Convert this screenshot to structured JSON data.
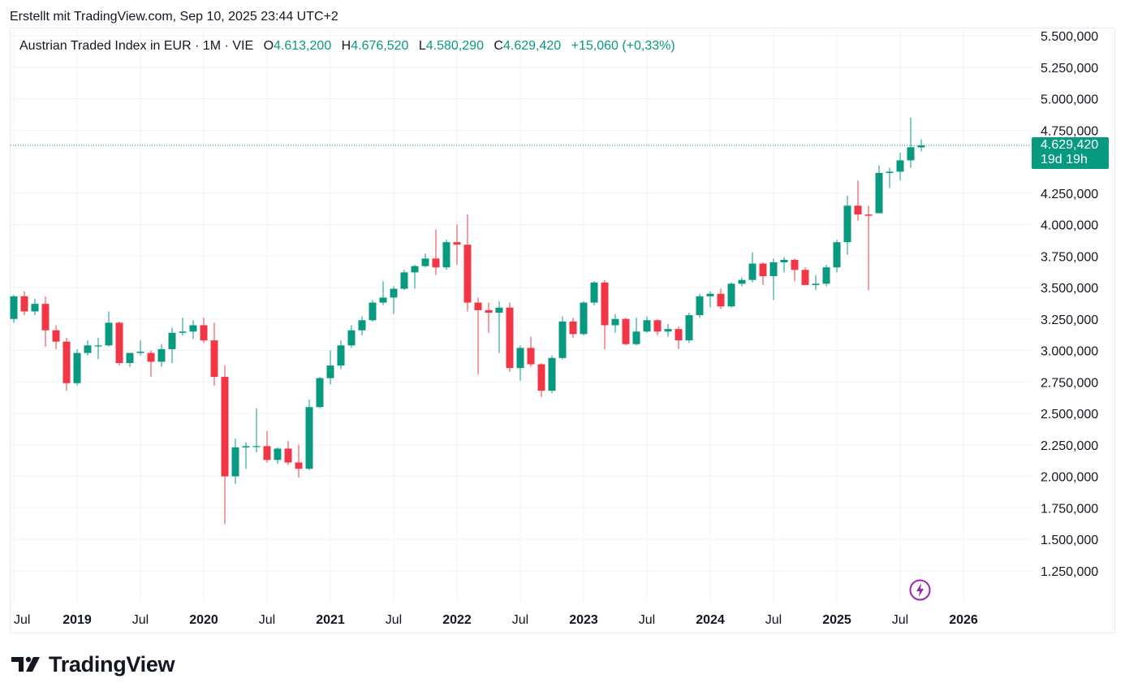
{
  "header": {
    "credit": "Erstellt mit TradingView.com, Sep 10, 2025 23:44 UTC+2"
  },
  "legend": {
    "symbol": "Austrian Traded Index in EUR · 1M · VIE",
    "o_label": "O",
    "o_value": "4.613,200",
    "h_label": "H",
    "h_value": "4.676,520",
    "l_label": "L",
    "l_value": "4.580,290",
    "c_label": "C",
    "c_value": "4.629,420",
    "change": "+15,060 (+0,33%)"
  },
  "price_tag": {
    "price": "4.629,420",
    "countdown": "19d 19h"
  },
  "brand": {
    "name": "TradingView"
  },
  "icons": {
    "bolt": "lightning-bolt-icon",
    "logo": "tradingview-logo-icon"
  },
  "colors": {
    "up": "#089981",
    "down": "#f23645",
    "grid": "#f0f3fa",
    "axis_text": "#131722",
    "bolt": "#9c27b0"
  },
  "chart_data": {
    "type": "candlestick",
    "interval": "1M",
    "y_ticks": [
      {
        "value": 5500000,
        "label": "5.500,000"
      },
      {
        "value": 5250000,
        "label": "5.250,000"
      },
      {
        "value": 5000000,
        "label": "5.000,000"
      },
      {
        "value": 4750000,
        "label": "4.750,000"
      },
      {
        "value": 4250000,
        "label": "4.250,000"
      },
      {
        "value": 4000000,
        "label": "4.000,000"
      },
      {
        "value": 3750000,
        "label": "3.750,000"
      },
      {
        "value": 3500000,
        "label": "3.500,000"
      },
      {
        "value": 3250000,
        "label": "3.250,000"
      },
      {
        "value": 3000000,
        "label": "3.000,000"
      },
      {
        "value": 2750000,
        "label": "2.750,000"
      },
      {
        "value": 2500000,
        "label": "2.500,000"
      },
      {
        "value": 2250000,
        "label": "2.250,000"
      },
      {
        "value": 2000000,
        "label": "2.000,000"
      },
      {
        "value": 1750000,
        "label": "1.750,000"
      },
      {
        "value": 1500000,
        "label": "1.500,000"
      },
      {
        "value": 1250000,
        "label": "1.250,000"
      }
    ],
    "y_range": [
      1000000,
      5600000
    ],
    "x_ticks": [
      {
        "index": 0,
        "label": "Jul",
        "bold": false
      },
      {
        "index": 6,
        "label": "2019",
        "bold": true
      },
      {
        "index": 12,
        "label": "Jul",
        "bold": false
      },
      {
        "index": 18,
        "label": "2020",
        "bold": true
      },
      {
        "index": 24,
        "label": "Jul",
        "bold": false
      },
      {
        "index": 30,
        "label": "2021",
        "bold": true
      },
      {
        "index": 36,
        "label": "Jul",
        "bold": false
      },
      {
        "index": 42,
        "label": "2022",
        "bold": true
      },
      {
        "index": 48,
        "label": "Jul",
        "bold": false
      },
      {
        "index": 54,
        "label": "2023",
        "bold": true
      },
      {
        "index": 60,
        "label": "Jul",
        "bold": false
      },
      {
        "index": 66,
        "label": "2024",
        "bold": true
      },
      {
        "index": 72,
        "label": "Jul",
        "bold": false
      },
      {
        "index": 78,
        "label": "2025",
        "bold": true
      },
      {
        "index": 84,
        "label": "Jul",
        "bold": false
      },
      {
        "index": 90,
        "label": "2026",
        "bold": true
      }
    ],
    "last_price": 4629420,
    "candles": [
      {
        "date": "2018-07",
        "o": 3250000,
        "h": 3440000,
        "l": 3220000,
        "c": 3430000
      },
      {
        "date": "2018-08",
        "o": 3430000,
        "h": 3470000,
        "l": 3280000,
        "c": 3310000
      },
      {
        "date": "2018-09",
        "o": 3310000,
        "h": 3410000,
        "l": 3280000,
        "c": 3370000
      },
      {
        "date": "2018-10",
        "o": 3370000,
        "h": 3430000,
        "l": 3030000,
        "c": 3160000
      },
      {
        "date": "2018-11",
        "o": 3160000,
        "h": 3200000,
        "l": 3010000,
        "c": 3070000
      },
      {
        "date": "2018-12",
        "o": 3070000,
        "h": 3100000,
        "l": 2680000,
        "c": 2740000
      },
      {
        "date": "2019-01",
        "o": 2740000,
        "h": 3010000,
        "l": 2720000,
        "c": 2980000
      },
      {
        "date": "2019-02",
        "o": 2980000,
        "h": 3080000,
        "l": 2960000,
        "c": 3040000
      },
      {
        "date": "2019-03",
        "o": 3040000,
        "h": 3100000,
        "l": 2930000,
        "c": 3040000
      },
      {
        "date": "2019-04",
        "o": 3040000,
        "h": 3310000,
        "l": 3030000,
        "c": 3220000
      },
      {
        "date": "2019-05",
        "o": 3220000,
        "h": 3230000,
        "l": 2880000,
        "c": 2900000
      },
      {
        "date": "2019-06",
        "o": 2900000,
        "h": 2980000,
        "l": 2870000,
        "c": 2980000
      },
      {
        "date": "2019-07",
        "o": 2980000,
        "h": 3080000,
        "l": 2960000,
        "c": 2990000
      },
      {
        "date": "2019-08",
        "o": 2980000,
        "h": 3000000,
        "l": 2790000,
        "c": 2910000
      },
      {
        "date": "2019-09",
        "o": 2910000,
        "h": 3050000,
        "l": 2870000,
        "c": 3010000
      },
      {
        "date": "2019-10",
        "o": 3010000,
        "h": 3180000,
        "l": 2900000,
        "c": 3140000
      },
      {
        "date": "2019-11",
        "o": 3140000,
        "h": 3260000,
        "l": 3120000,
        "c": 3150000
      },
      {
        "date": "2019-12",
        "o": 3150000,
        "h": 3240000,
        "l": 3090000,
        "c": 3200000
      },
      {
        "date": "2020-01",
        "o": 3200000,
        "h": 3260000,
        "l": 3060000,
        "c": 3080000
      },
      {
        "date": "2020-02",
        "o": 3080000,
        "h": 3220000,
        "l": 2720000,
        "c": 2790000
      },
      {
        "date": "2020-03",
        "o": 2790000,
        "h": 2880000,
        "l": 1620000,
        "c": 2000000
      },
      {
        "date": "2020-04",
        "o": 2000000,
        "h": 2300000,
        "l": 1940000,
        "c": 2230000
      },
      {
        "date": "2020-05",
        "o": 2230000,
        "h": 2270000,
        "l": 2060000,
        "c": 2240000
      },
      {
        "date": "2020-06",
        "o": 2240000,
        "h": 2540000,
        "l": 2190000,
        "c": 2240000
      },
      {
        "date": "2020-07",
        "o": 2240000,
        "h": 2360000,
        "l": 2110000,
        "c": 2130000
      },
      {
        "date": "2020-08",
        "o": 2130000,
        "h": 2230000,
        "l": 2100000,
        "c": 2220000
      },
      {
        "date": "2020-09",
        "o": 2220000,
        "h": 2280000,
        "l": 2090000,
        "c": 2110000
      },
      {
        "date": "2020-10",
        "o": 2110000,
        "h": 2250000,
        "l": 1990000,
        "c": 2060000
      },
      {
        "date": "2020-11",
        "o": 2060000,
        "h": 2610000,
        "l": 2050000,
        "c": 2550000
      },
      {
        "date": "2020-12",
        "o": 2550000,
        "h": 2790000,
        "l": 2540000,
        "c": 2780000
      },
      {
        "date": "2021-01",
        "o": 2780000,
        "h": 3000000,
        "l": 2730000,
        "c": 2880000
      },
      {
        "date": "2021-02",
        "o": 2880000,
        "h": 3080000,
        "l": 2850000,
        "c": 3040000
      },
      {
        "date": "2021-03",
        "o": 3040000,
        "h": 3200000,
        "l": 3020000,
        "c": 3160000
      },
      {
        "date": "2021-04",
        "o": 3160000,
        "h": 3270000,
        "l": 3120000,
        "c": 3240000
      },
      {
        "date": "2021-05",
        "o": 3240000,
        "h": 3400000,
        "l": 3230000,
        "c": 3380000
      },
      {
        "date": "2021-06",
        "o": 3380000,
        "h": 3550000,
        "l": 3360000,
        "c": 3420000
      },
      {
        "date": "2021-07",
        "o": 3420000,
        "h": 3510000,
        "l": 3290000,
        "c": 3490000
      },
      {
        "date": "2021-08",
        "o": 3490000,
        "h": 3640000,
        "l": 3480000,
        "c": 3620000
      },
      {
        "date": "2021-09",
        "o": 3620000,
        "h": 3680000,
        "l": 3490000,
        "c": 3670000
      },
      {
        "date": "2021-10",
        "o": 3670000,
        "h": 3770000,
        "l": 3660000,
        "c": 3730000
      },
      {
        "date": "2021-11",
        "o": 3730000,
        "h": 3960000,
        "l": 3600000,
        "c": 3660000
      },
      {
        "date": "2021-12",
        "o": 3660000,
        "h": 3880000,
        "l": 3640000,
        "c": 3860000
      },
      {
        "date": "2022-01",
        "o": 3860000,
        "h": 4000000,
        "l": 3680000,
        "c": 3840000
      },
      {
        "date": "2022-02",
        "o": 3840000,
        "h": 4080000,
        "l": 3310000,
        "c": 3380000
      },
      {
        "date": "2022-03",
        "o": 3380000,
        "h": 3420000,
        "l": 2810000,
        "c": 3320000
      },
      {
        "date": "2022-04",
        "o": 3320000,
        "h": 3380000,
        "l": 3140000,
        "c": 3300000
      },
      {
        "date": "2022-05",
        "o": 3300000,
        "h": 3390000,
        "l": 2980000,
        "c": 3340000
      },
      {
        "date": "2022-06",
        "o": 3340000,
        "h": 3380000,
        "l": 2830000,
        "c": 2860000
      },
      {
        "date": "2022-07",
        "o": 2860000,
        "h": 3040000,
        "l": 2760000,
        "c": 3020000
      },
      {
        "date": "2022-08",
        "o": 3020000,
        "h": 3110000,
        "l": 2870000,
        "c": 2890000
      },
      {
        "date": "2022-09",
        "o": 2890000,
        "h": 2900000,
        "l": 2630000,
        "c": 2680000
      },
      {
        "date": "2022-10",
        "o": 2680000,
        "h": 2960000,
        "l": 2660000,
        "c": 2940000
      },
      {
        "date": "2022-11",
        "o": 2940000,
        "h": 3270000,
        "l": 2930000,
        "c": 3230000
      },
      {
        "date": "2022-12",
        "o": 3230000,
        "h": 3260000,
        "l": 3100000,
        "c": 3130000
      },
      {
        "date": "2023-01",
        "o": 3130000,
        "h": 3390000,
        "l": 3120000,
        "c": 3380000
      },
      {
        "date": "2023-02",
        "o": 3380000,
        "h": 3550000,
        "l": 3360000,
        "c": 3540000
      },
      {
        "date": "2023-03",
        "o": 3540000,
        "h": 3560000,
        "l": 3010000,
        "c": 3200000
      },
      {
        "date": "2023-04",
        "o": 3200000,
        "h": 3290000,
        "l": 3140000,
        "c": 3250000
      },
      {
        "date": "2023-05",
        "o": 3250000,
        "h": 3260000,
        "l": 3040000,
        "c": 3050000
      },
      {
        "date": "2023-06",
        "o": 3050000,
        "h": 3260000,
        "l": 3040000,
        "c": 3150000
      },
      {
        "date": "2023-07",
        "o": 3150000,
        "h": 3270000,
        "l": 3140000,
        "c": 3240000
      },
      {
        "date": "2023-08",
        "o": 3240000,
        "h": 3250000,
        "l": 3120000,
        "c": 3150000
      },
      {
        "date": "2023-09",
        "o": 3150000,
        "h": 3210000,
        "l": 3110000,
        "c": 3170000
      },
      {
        "date": "2023-10",
        "o": 3170000,
        "h": 3190000,
        "l": 3010000,
        "c": 3080000
      },
      {
        "date": "2023-11",
        "o": 3080000,
        "h": 3300000,
        "l": 3060000,
        "c": 3280000
      },
      {
        "date": "2023-12",
        "o": 3280000,
        "h": 3450000,
        "l": 3260000,
        "c": 3430000
      },
      {
        "date": "2024-01",
        "o": 3430000,
        "h": 3470000,
        "l": 3340000,
        "c": 3450000
      },
      {
        "date": "2024-02",
        "o": 3450000,
        "h": 3490000,
        "l": 3330000,
        "c": 3350000
      },
      {
        "date": "2024-03",
        "o": 3350000,
        "h": 3540000,
        "l": 3340000,
        "c": 3530000
      },
      {
        "date": "2024-04",
        "o": 3530000,
        "h": 3580000,
        "l": 3510000,
        "c": 3560000
      },
      {
        "date": "2024-05",
        "o": 3560000,
        "h": 3780000,
        "l": 3540000,
        "c": 3690000
      },
      {
        "date": "2024-06",
        "o": 3690000,
        "h": 3700000,
        "l": 3520000,
        "c": 3590000
      },
      {
        "date": "2024-07",
        "o": 3590000,
        "h": 3730000,
        "l": 3400000,
        "c": 3700000
      },
      {
        "date": "2024-08",
        "o": 3700000,
        "h": 3740000,
        "l": 3620000,
        "c": 3720000
      },
      {
        "date": "2024-09",
        "o": 3720000,
        "h": 3730000,
        "l": 3550000,
        "c": 3640000
      },
      {
        "date": "2024-10",
        "o": 3640000,
        "h": 3660000,
        "l": 3520000,
        "c": 3520000
      },
      {
        "date": "2024-11",
        "o": 3520000,
        "h": 3600000,
        "l": 3480000,
        "c": 3530000
      },
      {
        "date": "2024-12",
        "o": 3530000,
        "h": 3680000,
        "l": 3510000,
        "c": 3660000
      },
      {
        "date": "2025-01",
        "o": 3660000,
        "h": 3880000,
        "l": 3620000,
        "c": 3860000
      },
      {
        "date": "2025-02",
        "o": 3860000,
        "h": 4230000,
        "l": 3760000,
        "c": 4150000
      },
      {
        "date": "2025-03",
        "o": 4150000,
        "h": 4350000,
        "l": 4030000,
        "c": 4080000
      },
      {
        "date": "2025-04",
        "o": 4080000,
        "h": 4150000,
        "l": 3480000,
        "c": 4070000
      },
      {
        "date": "2025-05",
        "o": 4090000,
        "h": 4470000,
        "l": 4090000,
        "c": 4410000
      },
      {
        "date": "2025-06",
        "o": 4410000,
        "h": 4450000,
        "l": 4290000,
        "c": 4420000
      },
      {
        "date": "2025-07",
        "o": 4420000,
        "h": 4570000,
        "l": 4350000,
        "c": 4510000
      },
      {
        "date": "2025-08",
        "o": 4510000,
        "h": 4850000,
        "l": 4450000,
        "c": 4614000
      },
      {
        "date": "2025-09",
        "o": 4613200,
        "h": 4676520,
        "l": 4580290,
        "c": 4629420
      }
    ]
  }
}
